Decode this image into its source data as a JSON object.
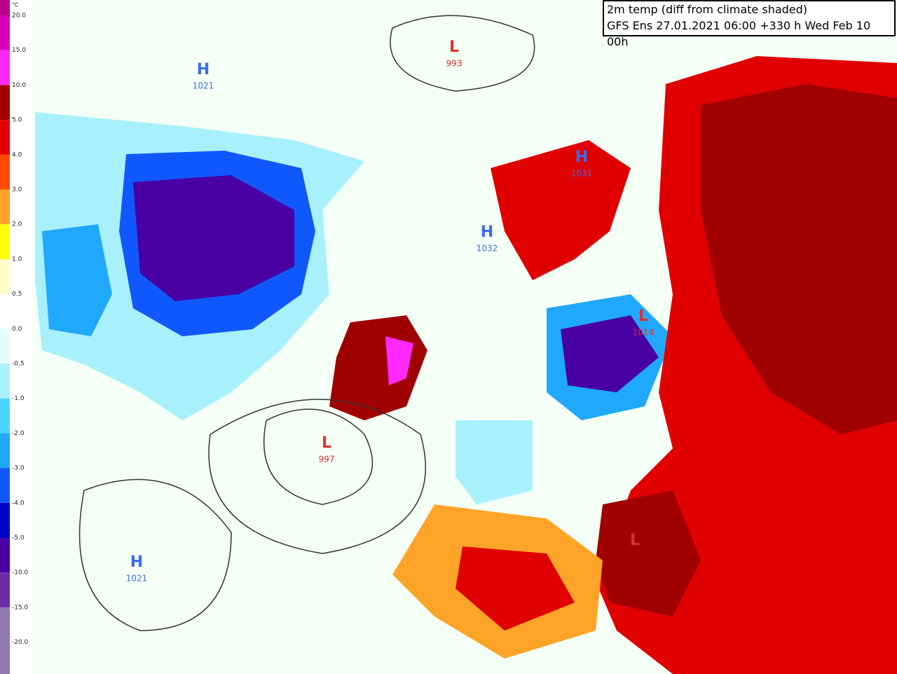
{
  "legend": {
    "unit": "°C",
    "labels": [
      "20.0",
      "15.0",
      "10.0",
      "5.0",
      "4.0",
      "3.0",
      "2.0",
      "1.0",
      "0.5",
      "0.0",
      "-0.5",
      "-1.0",
      "-2.0",
      "-3.0",
      "-4.0",
      "-5.0",
      "-10.0",
      "-15.0",
      "-20.0"
    ],
    "colors": [
      "#b8008c",
      "#d800b8",
      "#ff28ff",
      "#a00000",
      "#e00000",
      "#ff4a00",
      "#ffa428",
      "#ffff00",
      "#fffcc8",
      "#ffffff",
      "#e4fcfc",
      "#a8f0fc",
      "#4cd4fc",
      "#20a8fc",
      "#1058fc",
      "#0000c8",
      "#4800a4",
      "#6c2ca8",
      "#9078b0",
      "#9078b0"
    ]
  },
  "header": {
    "title": "2m temp (diff from climate shaded)",
    "subtitle": "GFS Ens 27.01.2021 06:00 +330 h Wed Feb 10 00h"
  },
  "centers": [
    {
      "letter": "H",
      "value": "1021",
      "color": "#3a6ee8"
    },
    {
      "letter": "L",
      "value": "993",
      "color": "#e03030"
    },
    {
      "letter": "H",
      "value": "1031",
      "color": "#3a6ee8"
    },
    {
      "letter": "H",
      "value": "1032",
      "color": "#3a6ee8"
    },
    {
      "letter": "L",
      "value": "1014",
      "color": "#e03030"
    },
    {
      "letter": "L",
      "value": "997",
      "color": "#e03030"
    },
    {
      "letter": "H",
      "value": "1021",
      "color": "#3a6ee8"
    },
    {
      "letter": "L",
      "color": "#e03030"
    }
  ]
}
